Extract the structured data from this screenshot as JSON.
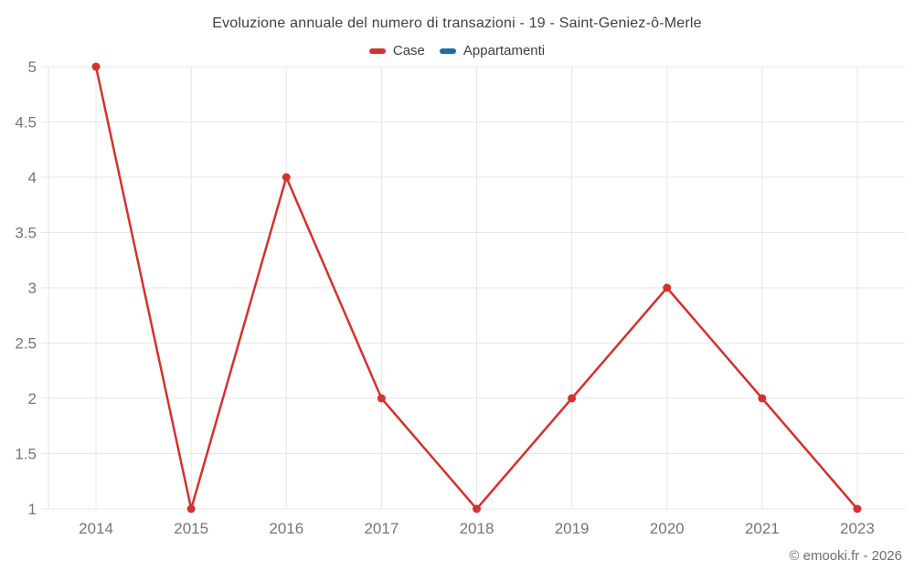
{
  "title": "Evoluzione annuale del numero di transazioni - 19 - Saint-Geniez-ô-Merle",
  "footer": "© emooki.fr - 2026",
  "legend": [
    {
      "label": "Case",
      "color": "#d5312e"
    },
    {
      "label": "Appartamenti",
      "color": "#1c6ea4"
    }
  ],
  "colors": {
    "case_series": "#d5312e",
    "appartamenti_series": "#1c6ea4",
    "gridline": "#e6e6e6",
    "tick_label": "#757575",
    "title_text": "#404040",
    "background": "#ffffff"
  },
  "chart_data": {
    "type": "line",
    "title": "Evoluzione annuale del numero di transazioni - 19 - Saint-Geniez-ô-Merle",
    "categories": [
      "2014",
      "2015",
      "2016",
      "2017",
      "2018",
      "2019",
      "2020",
      "2021",
      "2023"
    ],
    "series": [
      {
        "name": "Case",
        "color": "#d5312e",
        "values": [
          5,
          1,
          4,
          2,
          1,
          2,
          3,
          2,
          1
        ]
      },
      {
        "name": "Appartamenti",
        "color": "#1c6ea4",
        "values": []
      }
    ],
    "xlabel": "",
    "ylabel": "",
    "ylim": [
      1,
      5
    ],
    "yticks": [
      1,
      1.5,
      2,
      2.5,
      3,
      3.5,
      4,
      4.5,
      5
    ],
    "grid": true,
    "legend_position": "top",
    "marker": "circle"
  }
}
